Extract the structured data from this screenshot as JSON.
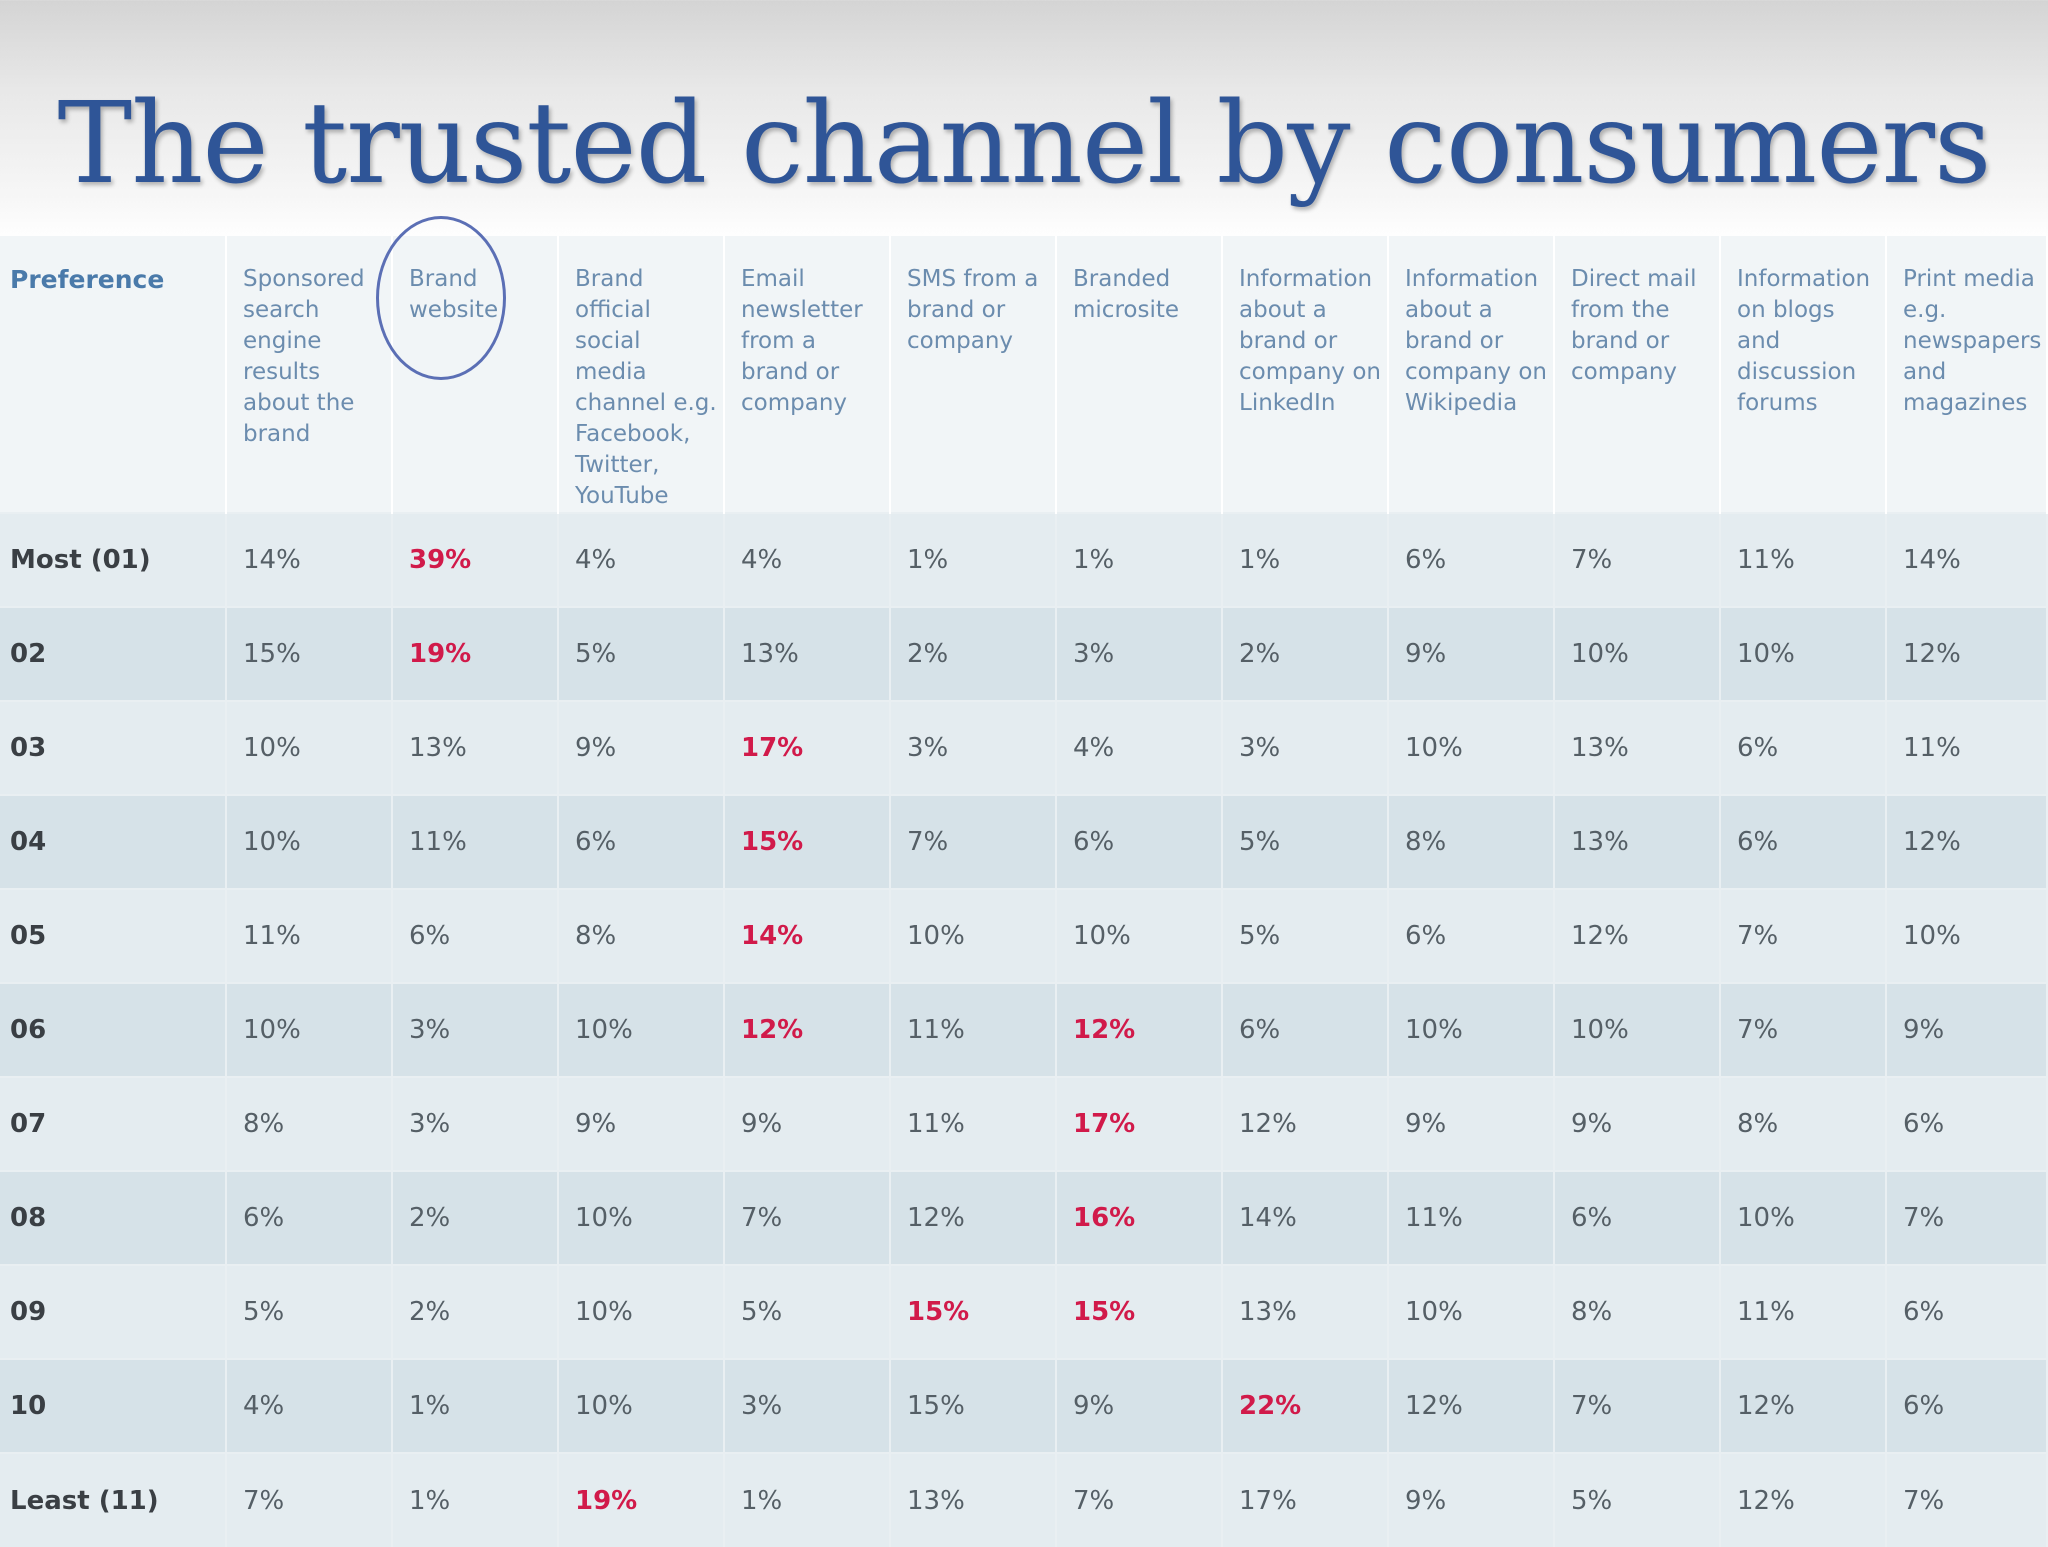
{
  "slide": {
    "title": "The trusted channel by consumers"
  },
  "chart_data": {
    "type": "table",
    "title": "The trusted channel by consumers",
    "row_header": "Preference",
    "columns": [
      "Sponsored search engine results about the brand",
      "Brand website",
      "Brand official social media channel e.g. Facebook, Twitter, YouTube",
      "Email newsletter from a brand or company",
      "SMS from a brand or company",
      "Branded microsite",
      "Information about a brand or company on LinkedIn",
      "Information about a brand or company on Wikipedia",
      "Direct mail from the brand or company",
      "Information on blogs and discussion forums",
      "Print media e.g. newspapers and magazines"
    ],
    "rows": [
      {
        "label": "Most (01)",
        "values": [
          "14%",
          "39%",
          "4%",
          "4%",
          "1%",
          "1%",
          "1%",
          "6%",
          "7%",
          "11%",
          "14%"
        ],
        "highlight": [
          1
        ]
      },
      {
        "label": "02",
        "values": [
          "15%",
          "19%",
          "5%",
          "13%",
          "2%",
          "3%",
          "2%",
          "9%",
          "10%",
          "10%",
          "12%"
        ],
        "highlight": [
          1
        ]
      },
      {
        "label": "03",
        "values": [
          "10%",
          "13%",
          "9%",
          "17%",
          "3%",
          "4%",
          "3%",
          "10%",
          "13%",
          "6%",
          "11%"
        ],
        "highlight": [
          3
        ]
      },
      {
        "label": "04",
        "values": [
          "10%",
          "11%",
          "6%",
          "15%",
          "7%",
          "6%",
          "5%",
          "8%",
          "13%",
          "6%",
          "12%"
        ],
        "highlight": [
          3
        ]
      },
      {
        "label": "05",
        "values": [
          "11%",
          "6%",
          "8%",
          "14%",
          "10%",
          "10%",
          "5%",
          "6%",
          "12%",
          "7%",
          "10%"
        ],
        "highlight": [
          3
        ]
      },
      {
        "label": "06",
        "values": [
          "10%",
          "3%",
          "10%",
          "12%",
          "11%",
          "12%",
          "6%",
          "10%",
          "10%",
          "7%",
          "9%"
        ],
        "highlight": [
          3,
          5
        ]
      },
      {
        "label": "07",
        "values": [
          "8%",
          "3%",
          "9%",
          "9%",
          "11%",
          "17%",
          "12%",
          "9%",
          "9%",
          "8%",
          "6%"
        ],
        "highlight": [
          5
        ]
      },
      {
        "label": "08",
        "values": [
          "6%",
          "2%",
          "10%",
          "7%",
          "12%",
          "16%",
          "14%",
          "11%",
          "6%",
          "10%",
          "7%"
        ],
        "highlight": [
          5
        ]
      },
      {
        "label": "09",
        "values": [
          "5%",
          "2%",
          "10%",
          "5%",
          "15%",
          "15%",
          "13%",
          "10%",
          "8%",
          "11%",
          "6%"
        ],
        "highlight": [
          4,
          5
        ]
      },
      {
        "label": "10",
        "values": [
          "4%",
          "1%",
          "10%",
          "3%",
          "15%",
          "9%",
          "22%",
          "12%",
          "7%",
          "12%",
          "6%"
        ],
        "highlight": [
          6
        ]
      },
      {
        "label": "Least (11)",
        "values": [
          "7%",
          "1%",
          "19%",
          "1%",
          "13%",
          "7%",
          "17%",
          "9%",
          "5%",
          "12%",
          "7%"
        ],
        "highlight": [
          2
        ]
      }
    ],
    "circled_column": 1,
    "colors": {
      "title": "#2f5597",
      "header_text": "#6b8cae",
      "highlight": "#d11a4a",
      "circle": "#5b6fb5",
      "row_light": "#e4ecf0",
      "row_dark": "#d6e2e8"
    }
  }
}
